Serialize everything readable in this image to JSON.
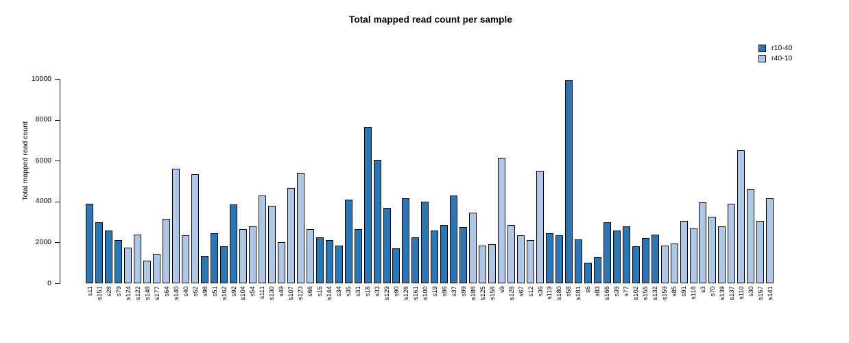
{
  "title": "Total mapped read count per sample",
  "legend": {
    "items": [
      {
        "label": "r10-40",
        "color": "#2878B8"
      },
      {
        "label": "r40-10",
        "color": "#AEC7E8"
      }
    ]
  },
  "chart_data": {
    "type": "bar",
    "title": "Total mapped read count per sample",
    "xlabel": "",
    "ylabel": "Total mapped read count",
    "ylim": [
      0,
      10000
    ],
    "yticks": [
      0,
      2000,
      4000,
      6000,
      8000,
      10000
    ],
    "grid": false,
    "legend_position": "top-right",
    "bar_outline_color": "#000000",
    "series": [
      {
        "name": "r10-40",
        "color": "#2878B8"
      },
      {
        "name": "r40-10",
        "color": "#AEC7E8"
      }
    ],
    "bars": [
      {
        "sample": "s11",
        "group": "r10-40",
        "value": 3900
      },
      {
        "sample": "s151",
        "group": "r10-40",
        "value": 3000
      },
      {
        "sample": "s28",
        "group": "r10-40",
        "value": 2600
      },
      {
        "sample": "s79",
        "group": "r10-40",
        "value": 2100
      },
      {
        "sample": "s124",
        "group": "r40-10",
        "value": 1750
      },
      {
        "sample": "s122",
        "group": "r40-10",
        "value": 2400
      },
      {
        "sample": "s148",
        "group": "r40-10",
        "value": 1100
      },
      {
        "sample": "s177",
        "group": "r40-10",
        "value": 1450
      },
      {
        "sample": "s64",
        "group": "r40-10",
        "value": 3150
      },
      {
        "sample": "s140",
        "group": "r40-10",
        "value": 5600
      },
      {
        "sample": "s40",
        "group": "r40-10",
        "value": 2350
      },
      {
        "sample": "s52",
        "group": "r40-10",
        "value": 5350
      },
      {
        "sample": "s98",
        "group": "r10-40",
        "value": 1350
      },
      {
        "sample": "s51",
        "group": "r10-40",
        "value": 2450
      },
      {
        "sample": "s162",
        "group": "r10-40",
        "value": 1800
      },
      {
        "sample": "s92",
        "group": "r10-40",
        "value": 3850
      },
      {
        "sample": "s104",
        "group": "r40-10",
        "value": 2650
      },
      {
        "sample": "s54",
        "group": "r40-10",
        "value": 2800
      },
      {
        "sample": "s111",
        "group": "r40-10",
        "value": 4300
      },
      {
        "sample": "s130",
        "group": "r40-10",
        "value": 3800
      },
      {
        "sample": "s49",
        "group": "r40-10",
        "value": 2000
      },
      {
        "sample": "s107",
        "group": "r40-10",
        "value": 4650
      },
      {
        "sample": "s123",
        "group": "r40-10",
        "value": 5400
      },
      {
        "sample": "s66",
        "group": "r40-10",
        "value": 2650
      },
      {
        "sample": "s16",
        "group": "r10-40",
        "value": 2250
      },
      {
        "sample": "s144",
        "group": "r10-40",
        "value": 2100
      },
      {
        "sample": "s34",
        "group": "r10-40",
        "value": 1850
      },
      {
        "sample": "s35",
        "group": "r10-40",
        "value": 4100
      },
      {
        "sample": "s31",
        "group": "r10-40",
        "value": 2650
      },
      {
        "sample": "s18",
        "group": "r10-40",
        "value": 7650
      },
      {
        "sample": "s33",
        "group": "r10-40",
        "value": 6050
      },
      {
        "sample": "s129",
        "group": "r10-40",
        "value": 3700
      },
      {
        "sample": "s90",
        "group": "r10-40",
        "value": 1700
      },
      {
        "sample": "s126",
        "group": "r10-40",
        "value": 4150
      },
      {
        "sample": "s161",
        "group": "r10-40",
        "value": 2250
      },
      {
        "sample": "s100",
        "group": "r10-40",
        "value": 4000
      },
      {
        "sample": "s19",
        "group": "r10-40",
        "value": 2600
      },
      {
        "sample": "s96",
        "group": "r10-40",
        "value": 2850
      },
      {
        "sample": "s37",
        "group": "r10-40",
        "value": 4300
      },
      {
        "sample": "s99",
        "group": "r10-40",
        "value": 2750
      },
      {
        "sample": "s188",
        "group": "r40-10",
        "value": 3450
      },
      {
        "sample": "s125",
        "group": "r40-10",
        "value": 1850
      },
      {
        "sample": "s158",
        "group": "r40-10",
        "value": 1900
      },
      {
        "sample": "s9",
        "group": "r40-10",
        "value": 6150
      },
      {
        "sample": "s128",
        "group": "r40-10",
        "value": 2850
      },
      {
        "sample": "s67",
        "group": "r40-10",
        "value": 2350
      },
      {
        "sample": "s12",
        "group": "r40-10",
        "value": 2100
      },
      {
        "sample": "s36",
        "group": "r40-10",
        "value": 5500
      },
      {
        "sample": "s119",
        "group": "r10-40",
        "value": 2450
      },
      {
        "sample": "s180",
        "group": "r10-40",
        "value": 2350
      },
      {
        "sample": "s58",
        "group": "r10-40",
        "value": 9950
      },
      {
        "sample": "s181",
        "group": "r10-40",
        "value": 2150
      },
      {
        "sample": "s6",
        "group": "r10-40",
        "value": 1000
      },
      {
        "sample": "s83",
        "group": "r10-40",
        "value": 1275
      },
      {
        "sample": "s166",
        "group": "r10-40",
        "value": 3000
      },
      {
        "sample": "s39",
        "group": "r10-40",
        "value": 2600
      },
      {
        "sample": "s77",
        "group": "r10-40",
        "value": 2800
      },
      {
        "sample": "s102",
        "group": "r10-40",
        "value": 1800
      },
      {
        "sample": "s155",
        "group": "r10-40",
        "value": 2200
      },
      {
        "sample": "s132",
        "group": "r10-40",
        "value": 2400
      },
      {
        "sample": "s159",
        "group": "r40-10",
        "value": 1850
      },
      {
        "sample": "s85",
        "group": "r40-10",
        "value": 1950
      },
      {
        "sample": "s91",
        "group": "r40-10",
        "value": 3050
      },
      {
        "sample": "s118",
        "group": "r40-10",
        "value": 2700
      },
      {
        "sample": "s3",
        "group": "r40-10",
        "value": 3950
      },
      {
        "sample": "s70",
        "group": "r40-10",
        "value": 3250
      },
      {
        "sample": "s139",
        "group": "r40-10",
        "value": 2800
      },
      {
        "sample": "s137",
        "group": "r40-10",
        "value": 3900
      },
      {
        "sample": "s110",
        "group": "r40-10",
        "value": 6500
      },
      {
        "sample": "s30",
        "group": "r40-10",
        "value": 4600
      },
      {
        "sample": "s157",
        "group": "r40-10",
        "value": 3050
      },
      {
        "sample": "s141",
        "group": "r40-10",
        "value": 4150
      }
    ]
  }
}
